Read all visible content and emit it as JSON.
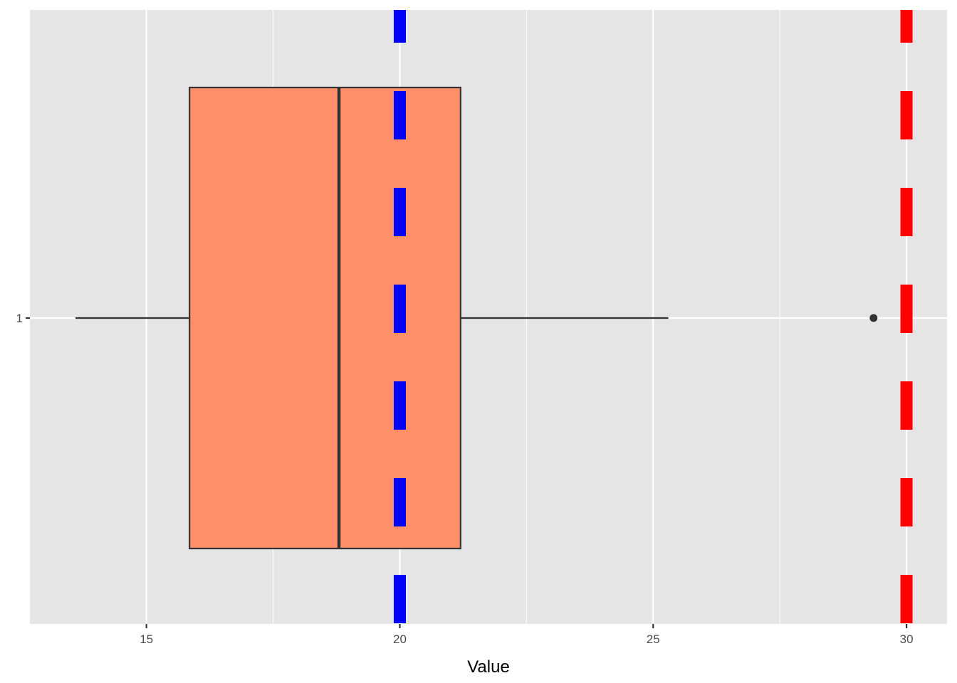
{
  "chart_data": {
    "type": "boxplot",
    "orientation": "horizontal",
    "title": "",
    "xlabel": "Value",
    "ylabel": "",
    "xlim": [
      12.7,
      30.8
    ],
    "x_ticks": [
      15,
      20,
      25,
      30
    ],
    "x_tick_labels": [
      "15",
      "20",
      "25",
      "30"
    ],
    "y_tick_labels": [
      "1"
    ],
    "grid": true,
    "box": {
      "category": "1",
      "whisker_low": 13.6,
      "q1": 15.85,
      "median": 18.8,
      "q3": 21.2,
      "whisker_high": 25.3,
      "outliers": [
        29.35
      ]
    },
    "reference_lines": [
      {
        "x": 20,
        "color": "#0000ff",
        "style": "dashed"
      },
      {
        "x": 30,
        "color": "#ff0000",
        "style": "dashed"
      }
    ],
    "colors": {
      "panel_background": "#e5e5e5",
      "grid": "#ffffff",
      "box_fill": "#ff8f69",
      "box_outline": "#333333"
    }
  }
}
